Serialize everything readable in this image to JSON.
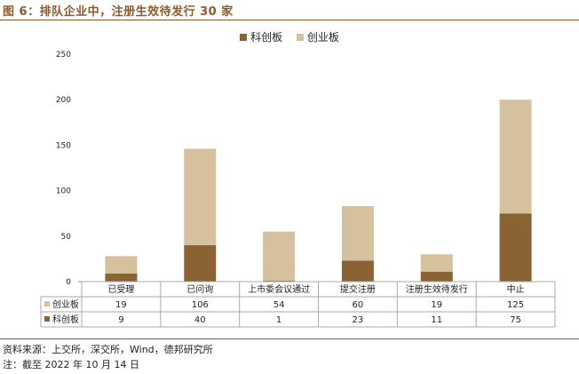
{
  "header": {
    "title": "图 6：排队企业中，注册生效待发行 30 家"
  },
  "legend": {
    "items": [
      "科创板",
      "创业板"
    ]
  },
  "footer": {
    "source": "资料来源：上交所，深交所，Wind，德邦研究所",
    "note": "注：截至 2022 年 10 月 14 日"
  },
  "colors": {
    "kechuang": "#8b6234",
    "chuangye": "#d5c19e",
    "accent": "#8a5a2b"
  },
  "chart_data": {
    "type": "bar",
    "stacked": true,
    "categories": [
      "已受理",
      "已问询",
      "上市委会议通过",
      "提交注册",
      "注册生效待发行",
      "中止"
    ],
    "series": [
      {
        "name": "科创板",
        "values": [
          9,
          40,
          1,
          23,
          11,
          75
        ]
      },
      {
        "name": "创业板",
        "values": [
          19,
          106,
          54,
          60,
          19,
          125
        ]
      }
    ],
    "ylim": [
      0,
      250
    ],
    "yticks": [
      0,
      50,
      100,
      150,
      200,
      250
    ],
    "legend_position": "top",
    "data_table": true
  }
}
